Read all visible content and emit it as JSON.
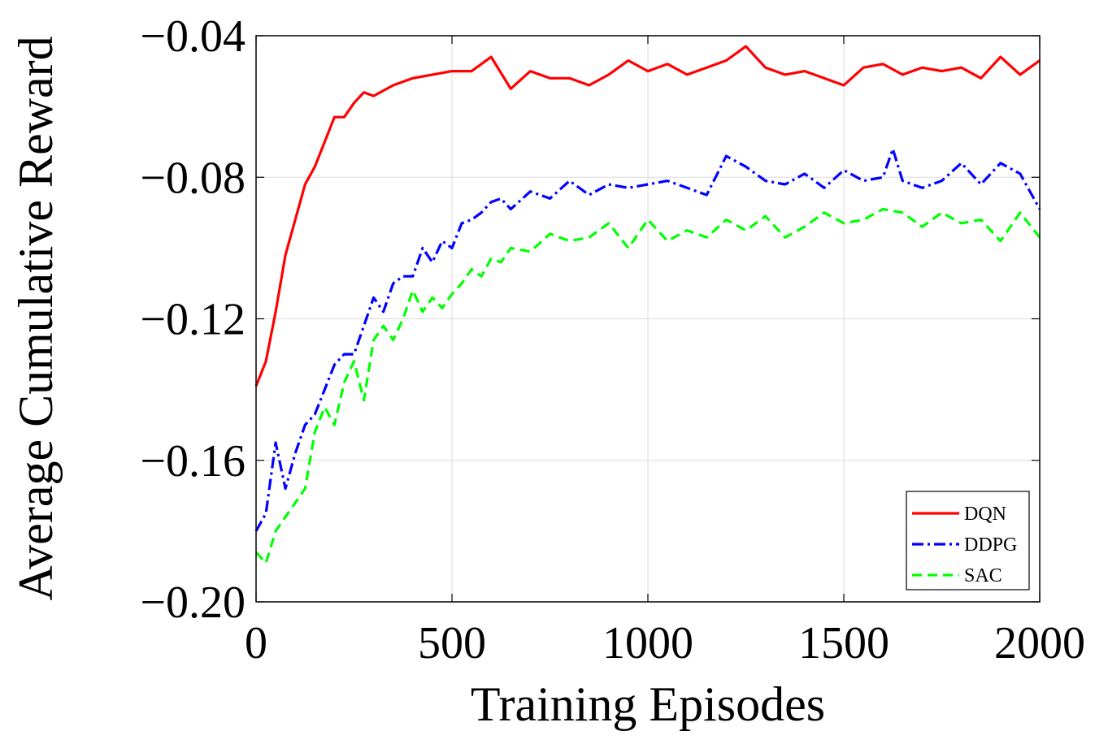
{
  "chart_data": {
    "type": "line",
    "title": "",
    "xlabel": "Training Episodes",
    "ylabel": "Average Cumulative Reward",
    "xlim": [
      0,
      2000
    ],
    "ylim": [
      -0.2,
      -0.04
    ],
    "x_ticks": [
      "0",
      "500",
      "1000",
      "1500",
      "2000"
    ],
    "y_ticks": [
      "−0.20",
      "−0.16",
      "−0.12",
      "−0.08",
      "−0.04"
    ],
    "x_tick_values": [
      0,
      500,
      1000,
      1500,
      2000
    ],
    "y_tick_values": [
      -0.2,
      -0.16,
      -0.12,
      -0.08,
      -0.04
    ],
    "grid": true,
    "legend_position": "bottom-right",
    "series": [
      {
        "name": "DQN",
        "color": "#ff0000",
        "style": "solid",
        "x": [
          0,
          25,
          50,
          75,
          100,
          125,
          150,
          175,
          200,
          225,
          250,
          275,
          300,
          350,
          400,
          450,
          500,
          550,
          600,
          650,
          700,
          750,
          800,
          850,
          900,
          950,
          1000,
          1050,
          1100,
          1150,
          1200,
          1250,
          1300,
          1350,
          1400,
          1450,
          1500,
          1550,
          1600,
          1650,
          1700,
          1750,
          1800,
          1850,
          1900,
          1950,
          2000
        ],
        "y": [
          -0.139,
          -0.132,
          -0.118,
          -0.102,
          -0.092,
          -0.082,
          -0.077,
          -0.07,
          -0.063,
          -0.063,
          -0.059,
          -0.056,
          -0.057,
          -0.054,
          -0.052,
          -0.051,
          -0.05,
          -0.05,
          -0.046,
          -0.055,
          -0.05,
          -0.052,
          -0.052,
          -0.054,
          -0.051,
          -0.047,
          -0.05,
          -0.048,
          -0.051,
          -0.049,
          -0.047,
          -0.043,
          -0.049,
          -0.051,
          -0.05,
          -0.052,
          -0.054,
          -0.049,
          -0.048,
          -0.051,
          -0.049,
          -0.05,
          -0.049,
          -0.052,
          -0.046,
          -0.051,
          -0.047
        ]
      },
      {
        "name": "DDPG",
        "color": "#0000ff",
        "style": "dashdot",
        "x": [
          0,
          25,
          50,
          75,
          100,
          125,
          150,
          175,
          200,
          225,
          250,
          275,
          300,
          325,
          350,
          375,
          400,
          425,
          450,
          475,
          500,
          525,
          550,
          575,
          600,
          625,
          650,
          700,
          750,
          800,
          850,
          900,
          950,
          1000,
          1050,
          1100,
          1150,
          1200,
          1250,
          1300,
          1350,
          1400,
          1450,
          1500,
          1550,
          1600,
          1625,
          1650,
          1700,
          1750,
          1800,
          1850,
          1900,
          1950,
          2000
        ],
        "y": [
          -0.18,
          -0.175,
          -0.155,
          -0.168,
          -0.158,
          -0.15,
          -0.147,
          -0.14,
          -0.133,
          -0.13,
          -0.13,
          -0.122,
          -0.114,
          -0.118,
          -0.11,
          -0.108,
          -0.108,
          -0.1,
          -0.104,
          -0.098,
          -0.1,
          -0.093,
          -0.092,
          -0.09,
          -0.087,
          -0.086,
          -0.089,
          -0.084,
          -0.086,
          -0.081,
          -0.085,
          -0.082,
          -0.083,
          -0.082,
          -0.081,
          -0.083,
          -0.085,
          -0.074,
          -0.077,
          -0.081,
          -0.082,
          -0.079,
          -0.083,
          -0.078,
          -0.081,
          -0.08,
          -0.072,
          -0.081,
          -0.083,
          -0.081,
          -0.076,
          -0.082,
          -0.076,
          -0.079,
          -0.089
        ]
      },
      {
        "name": "SAC",
        "color": "#00ff00",
        "style": "dashed",
        "x": [
          0,
          25,
          50,
          75,
          100,
          125,
          150,
          175,
          200,
          225,
          250,
          275,
          300,
          325,
          350,
          375,
          400,
          425,
          450,
          475,
          500,
          525,
          550,
          575,
          600,
          625,
          650,
          700,
          750,
          800,
          850,
          900,
          950,
          1000,
          1050,
          1100,
          1150,
          1200,
          1250,
          1300,
          1350,
          1400,
          1450,
          1500,
          1550,
          1600,
          1650,
          1700,
          1750,
          1800,
          1850,
          1900,
          1950,
          2000
        ],
        "y": [
          -0.186,
          -0.189,
          -0.18,
          -0.176,
          -0.172,
          -0.168,
          -0.152,
          -0.145,
          -0.15,
          -0.138,
          -0.132,
          -0.143,
          -0.126,
          -0.122,
          -0.126,
          -0.12,
          -0.112,
          -0.118,
          -0.114,
          -0.117,
          -0.113,
          -0.11,
          -0.106,
          -0.108,
          -0.103,
          -0.104,
          -0.1,
          -0.101,
          -0.096,
          -0.098,
          -0.097,
          -0.093,
          -0.1,
          -0.092,
          -0.098,
          -0.095,
          -0.097,
          -0.092,
          -0.095,
          -0.091,
          -0.097,
          -0.094,
          -0.09,
          -0.093,
          -0.092,
          -0.089,
          -0.09,
          -0.094,
          -0.09,
          -0.093,
          -0.092,
          -0.098,
          -0.09,
          -0.097
        ]
      }
    ]
  }
}
